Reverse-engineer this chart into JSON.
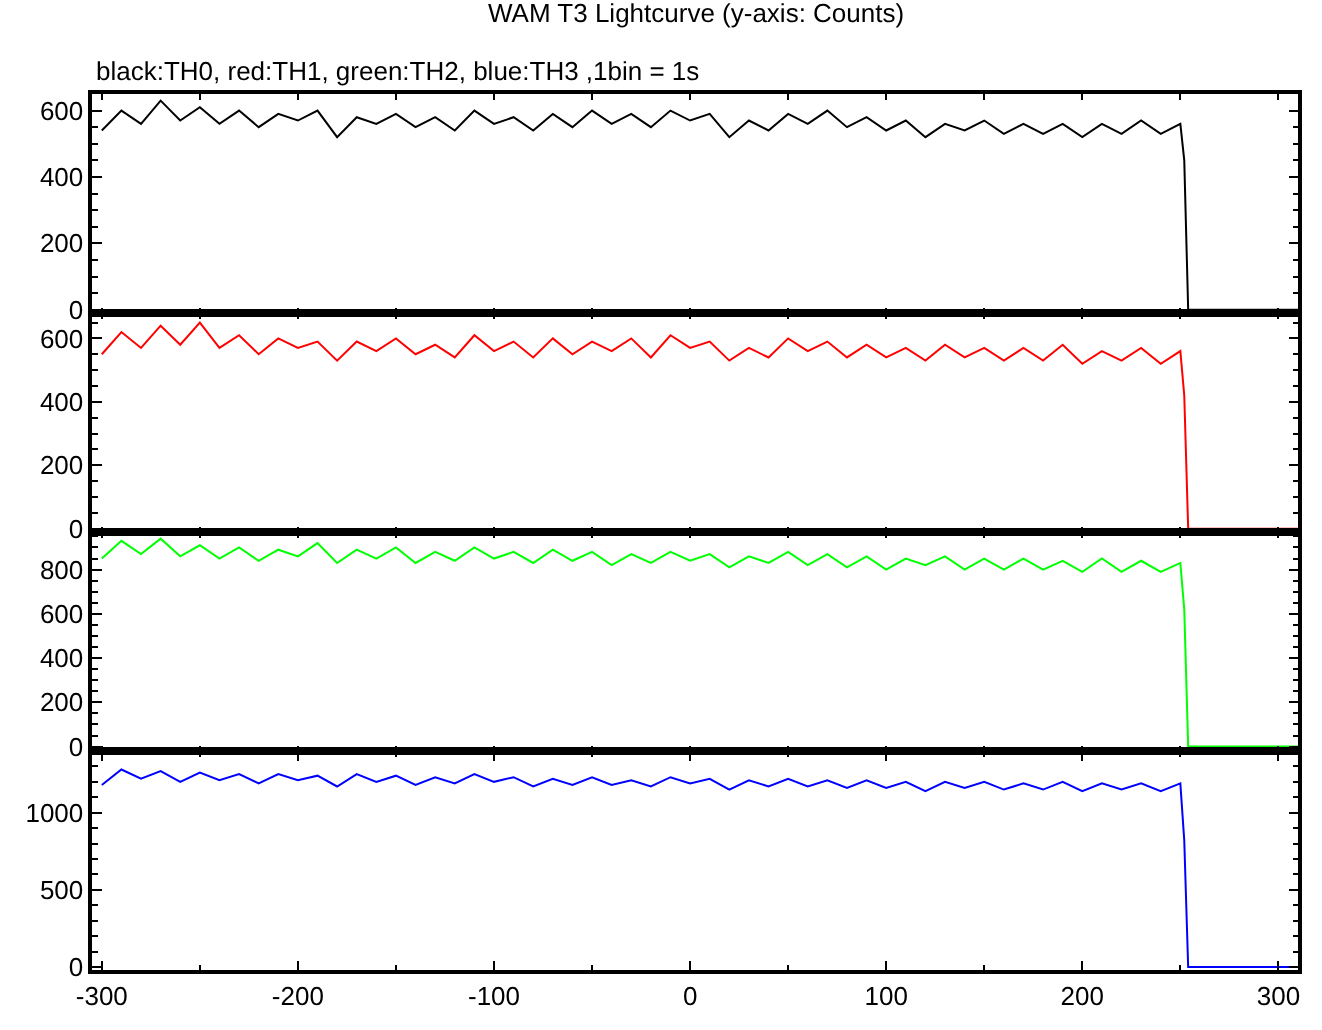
{
  "chart_data": [
    {
      "type": "line",
      "title": "WAM T3 Lightcurve (y-axis: Counts)",
      "subtitle": "black:TH0, red:TH1, green:TH2, blue:TH3 ,1bin = 1s",
      "tick_labels": "y",
      "x": [
        -300,
        -290,
        -280,
        -270,
        -260,
        -250,
        -240,
        -230,
        -220,
        -210,
        -200,
        -190,
        -180,
        -170,
        -160,
        -150,
        -140,
        -130,
        -120,
        -110,
        -100,
        -90,
        -80,
        -70,
        -60,
        -50,
        -40,
        -30,
        -20,
        -10,
        0,
        10,
        20,
        30,
        40,
        50,
        60,
        70,
        80,
        90,
        100,
        110,
        120,
        130,
        140,
        150,
        160,
        170,
        180,
        190,
        200,
        210,
        220,
        230,
        240,
        250,
        252,
        254,
        310
      ],
      "series": [
        {
          "color": "#000000",
          "values": [
            540,
            600,
            560,
            630,
            570,
            610,
            560,
            600,
            550,
            590,
            570,
            600,
            520,
            580,
            560,
            590,
            550,
            580,
            540,
            600,
            560,
            580,
            540,
            590,
            550,
            600,
            560,
            590,
            550,
            600,
            570,
            590,
            520,
            570,
            540,
            590,
            560,
            600,
            550,
            580,
            540,
            570,
            520,
            560,
            540,
            570,
            530,
            560,
            530,
            560,
            520,
            560,
            530,
            570,
            530,
            560,
            450,
            0,
            0
          ]
        }
      ],
      "xlim": [
        -305,
        310
      ],
      "ylim": [
        -10,
        650
      ],
      "yticks": [
        0,
        200,
        400,
        600
      ]
    },
    {
      "type": "line",
      "tick_labels": "y",
      "x": [
        -300,
        -290,
        -280,
        -270,
        -260,
        -250,
        -240,
        -230,
        -220,
        -210,
        -200,
        -190,
        -180,
        -170,
        -160,
        -150,
        -140,
        -130,
        -120,
        -110,
        -100,
        -90,
        -80,
        -70,
        -60,
        -50,
        -40,
        -30,
        -20,
        -10,
        0,
        10,
        20,
        30,
        40,
        50,
        60,
        70,
        80,
        90,
        100,
        110,
        120,
        130,
        140,
        150,
        160,
        170,
        180,
        190,
        200,
        210,
        220,
        230,
        240,
        250,
        252,
        254,
        310
      ],
      "series": [
        {
          "color": "#ff0000",
          "values": [
            550,
            620,
            570,
            640,
            580,
            650,
            570,
            610,
            550,
            600,
            570,
            590,
            530,
            590,
            560,
            600,
            550,
            580,
            540,
            610,
            560,
            590,
            540,
            600,
            550,
            590,
            560,
            600,
            540,
            610,
            570,
            590,
            530,
            570,
            540,
            600,
            560,
            590,
            540,
            580,
            540,
            570,
            530,
            580,
            540,
            570,
            530,
            570,
            530,
            580,
            520,
            560,
            530,
            570,
            520,
            560,
            420,
            0,
            0
          ]
        }
      ],
      "xlim": [
        -305,
        310
      ],
      "ylim": [
        -10,
        680
      ],
      "yticks": [
        0,
        200,
        400,
        600
      ]
    },
    {
      "type": "line",
      "tick_labels": "y",
      "x": [
        -300,
        -290,
        -280,
        -270,
        -260,
        -250,
        -240,
        -230,
        -220,
        -210,
        -200,
        -190,
        -180,
        -170,
        -160,
        -150,
        -140,
        -130,
        -120,
        -110,
        -100,
        -90,
        -80,
        -70,
        -60,
        -50,
        -40,
        -30,
        -20,
        -10,
        0,
        10,
        20,
        30,
        40,
        50,
        60,
        70,
        80,
        90,
        100,
        110,
        120,
        130,
        140,
        150,
        160,
        170,
        180,
        190,
        200,
        210,
        220,
        230,
        240,
        250,
        252,
        254,
        310
      ],
      "series": [
        {
          "color": "#00ff00",
          "values": [
            850,
            930,
            870,
            940,
            860,
            910,
            850,
            900,
            840,
            890,
            860,
            920,
            830,
            890,
            850,
            900,
            830,
            880,
            840,
            900,
            850,
            880,
            830,
            890,
            840,
            880,
            820,
            870,
            830,
            880,
            840,
            870,
            810,
            860,
            830,
            880,
            820,
            870,
            810,
            860,
            800,
            850,
            820,
            860,
            800,
            850,
            800,
            850,
            800,
            840,
            790,
            850,
            790,
            840,
            790,
            830,
            620,
            0,
            0
          ]
        }
      ],
      "xlim": [
        -305,
        310
      ],
      "ylim": [
        -20,
        970
      ],
      "yticks": [
        0,
        200,
        400,
        600,
        800
      ]
    },
    {
      "type": "line",
      "x": [
        -300,
        -290,
        -280,
        -270,
        -260,
        -250,
        -240,
        -230,
        -220,
        -210,
        -200,
        -190,
        -180,
        -170,
        -160,
        -150,
        -140,
        -130,
        -120,
        -110,
        -100,
        -90,
        -80,
        -70,
        -60,
        -50,
        -40,
        -30,
        -20,
        -10,
        0,
        10,
        20,
        30,
        40,
        50,
        60,
        70,
        80,
        90,
        100,
        110,
        120,
        130,
        140,
        150,
        160,
        170,
        180,
        190,
        200,
        210,
        220,
        230,
        240,
        250,
        252,
        254,
        310
      ],
      "series": [
        {
          "color": "#0000ff",
          "values": [
            1180,
            1280,
            1220,
            1270,
            1200,
            1260,
            1210,
            1250,
            1190,
            1250,
            1210,
            1240,
            1170,
            1250,
            1200,
            1240,
            1180,
            1230,
            1190,
            1250,
            1200,
            1230,
            1170,
            1220,
            1180,
            1230,
            1180,
            1210,
            1170,
            1230,
            1190,
            1220,
            1150,
            1210,
            1170,
            1220,
            1170,
            1210,
            1160,
            1210,
            1160,
            1200,
            1140,
            1200,
            1160,
            1200,
            1150,
            1190,
            1150,
            1200,
            1140,
            1190,
            1150,
            1190,
            1140,
            1190,
            820,
            0,
            0
          ]
        }
      ],
      "xlim": [
        -305,
        310
      ],
      "ylim": [
        -20,
        1400
      ],
      "xticks": [
        -300,
        -200,
        -100,
        0,
        100,
        200,
        300
      ],
      "yticks": [
        0,
        500,
        1000
      ]
    }
  ]
}
